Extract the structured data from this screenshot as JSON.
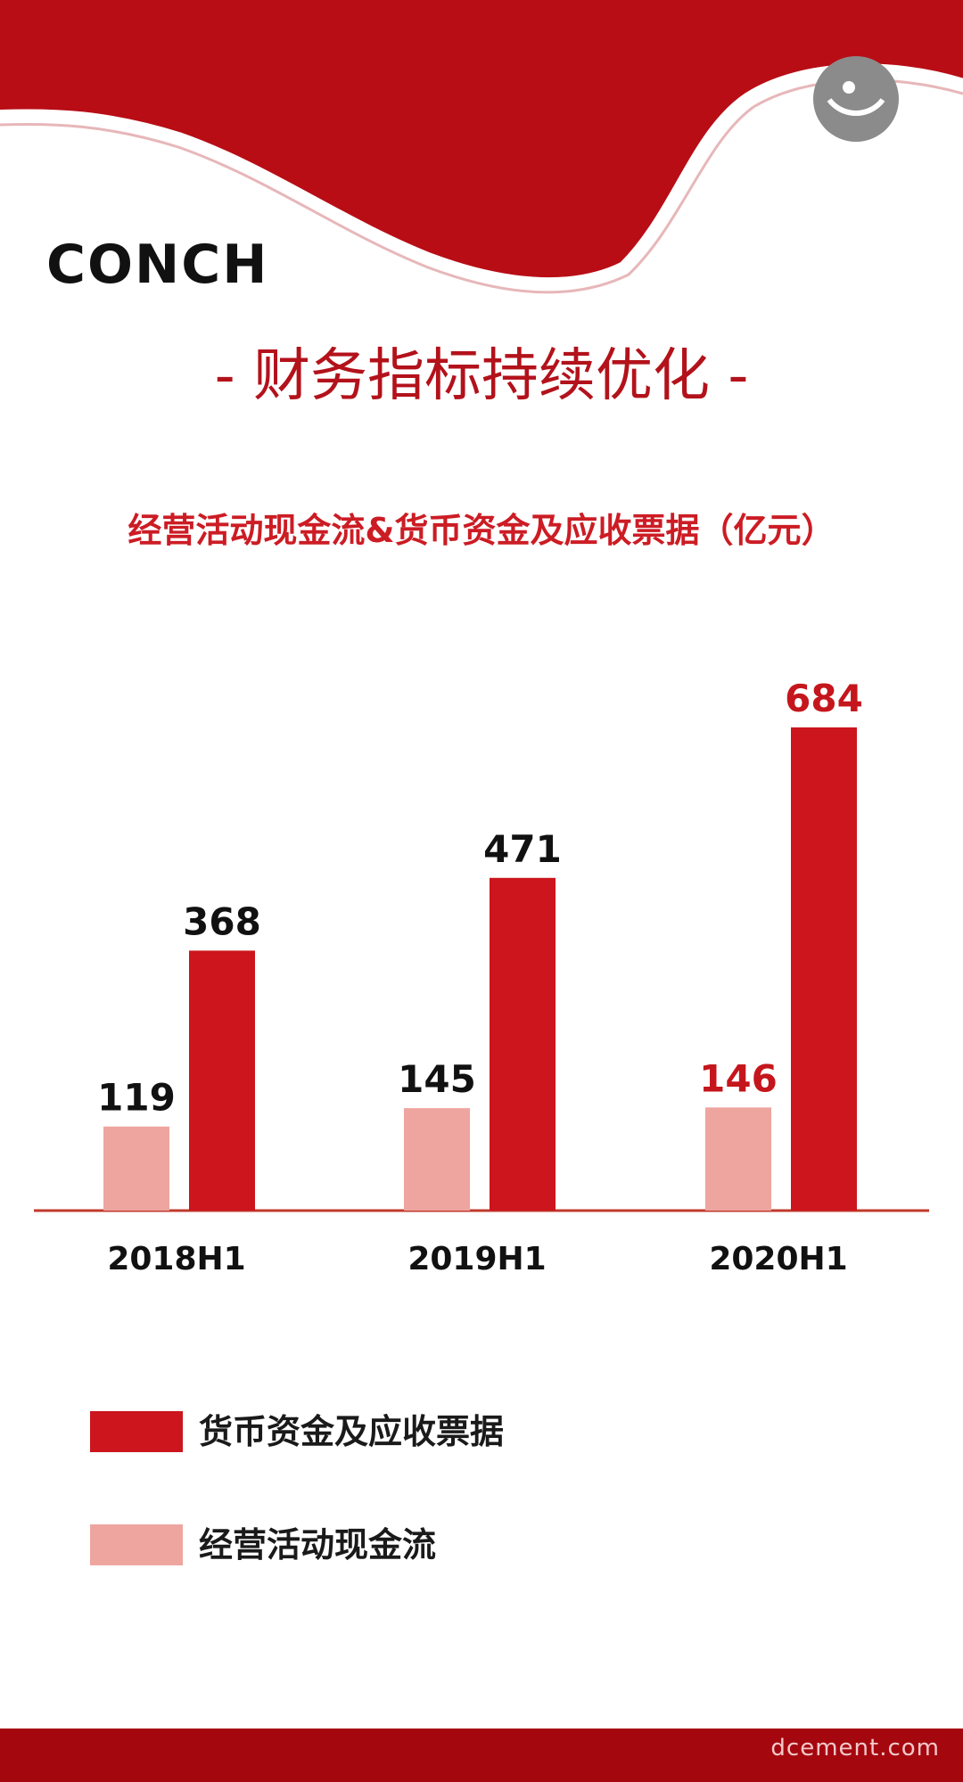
{
  "brand": {
    "logo_text": "CONCH",
    "logo_name": "conch-logo",
    "accent_color": "#cc1419"
  },
  "headline": "- 财务指标持续优化 -",
  "watermark": "dcement.com",
  "colors": {
    "dark_red": "#cc151c",
    "light_red": "#eea59f",
    "title_red": "#cc1c24",
    "label_red": "#c4161c",
    "axis": "#c0392b",
    "band": "#a5070e"
  },
  "chart_data": {
    "type": "bar",
    "title": "经营活动现金流&货币资金及应收票据（亿元）",
    "categories": [
      "2018H1",
      "2019H1",
      "2020H1"
    ],
    "series": [
      {
        "name": "经营活动现金流",
        "values": [
          119,
          145,
          146
        ],
        "color": "#eea59f"
      },
      {
        "name": "货币资金及应收票据",
        "values": [
          368,
          471,
          684
        ],
        "color": "#cc151c"
      }
    ],
    "ylim": [
      0,
      684
    ],
    "grid": false,
    "legend": "bottom",
    "highlighted_category": "2020H1"
  },
  "legend": {
    "items": [
      {
        "label": "货币资金及应收票据",
        "color": "#cc151c"
      },
      {
        "label": "经营活动现金流",
        "color": "#eea59f"
      }
    ]
  }
}
